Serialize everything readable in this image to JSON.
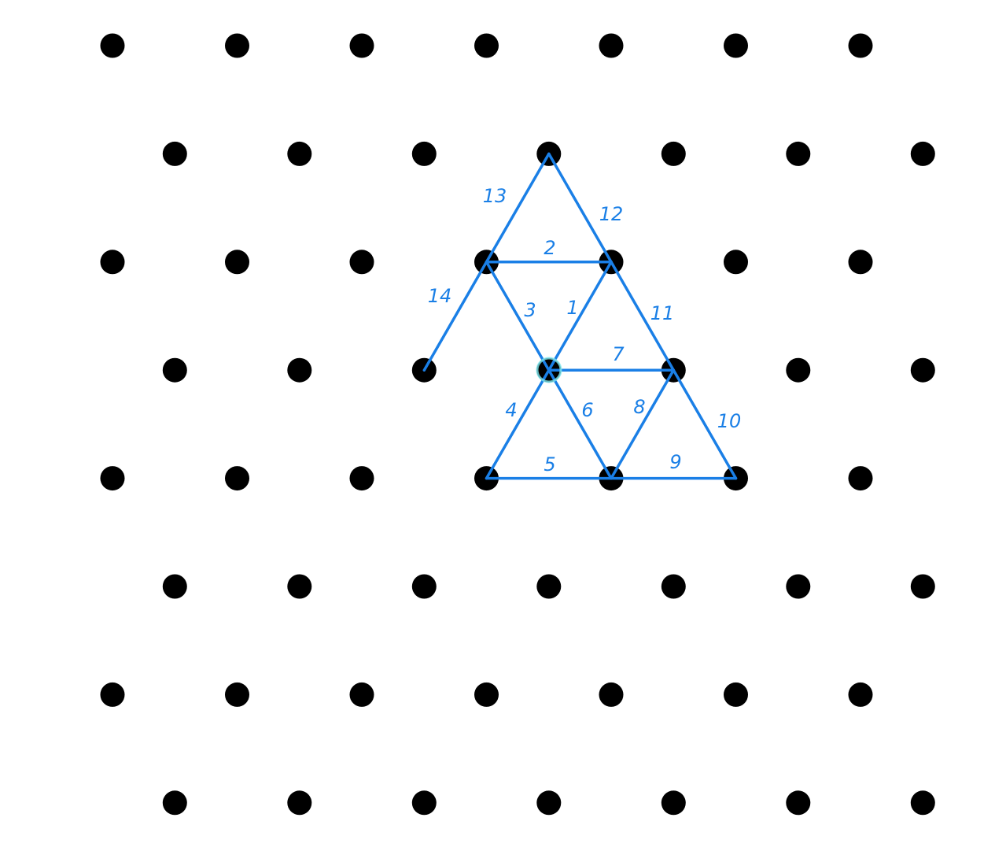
{
  "diagram": {
    "colors": {
      "background": "#ffffff",
      "dot": "#000000",
      "segment": "#1a7fe6",
      "highlight": "#7ee8f0"
    },
    "grid": {
      "type": "triangular-dot-grid",
      "rows": 8,
      "dots_per_row": 7
    },
    "segments": [
      {
        "label": "1"
      },
      {
        "label": "2"
      },
      {
        "label": "3"
      },
      {
        "label": "4"
      },
      {
        "label": "5"
      },
      {
        "label": "6"
      },
      {
        "label": "7"
      },
      {
        "label": "8"
      },
      {
        "label": "9"
      },
      {
        "label": "10"
      },
      {
        "label": "11"
      },
      {
        "label": "12"
      },
      {
        "label": "13"
      },
      {
        "label": "14"
      }
    ]
  }
}
